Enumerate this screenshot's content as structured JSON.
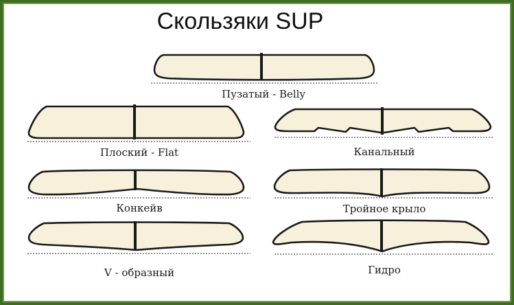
{
  "title": "Скользяки SUP",
  "colors": {
    "frame": "#3f6b22",
    "board_fill": "#f7f1dc",
    "outline": "#1a1a1a"
  },
  "profiles": [
    {
      "id": "belly",
      "label": "Пузатый - Belly"
    },
    {
      "id": "flat",
      "label": "Плоский - Flat"
    },
    {
      "id": "channel",
      "label": "Канальный"
    },
    {
      "id": "concave",
      "label": "Конкейв"
    },
    {
      "id": "triple",
      "label": "Тройное крыло"
    },
    {
      "id": "vee",
      "label": "V - образный"
    },
    {
      "id": "hydro",
      "label": "Гидро"
    }
  ]
}
